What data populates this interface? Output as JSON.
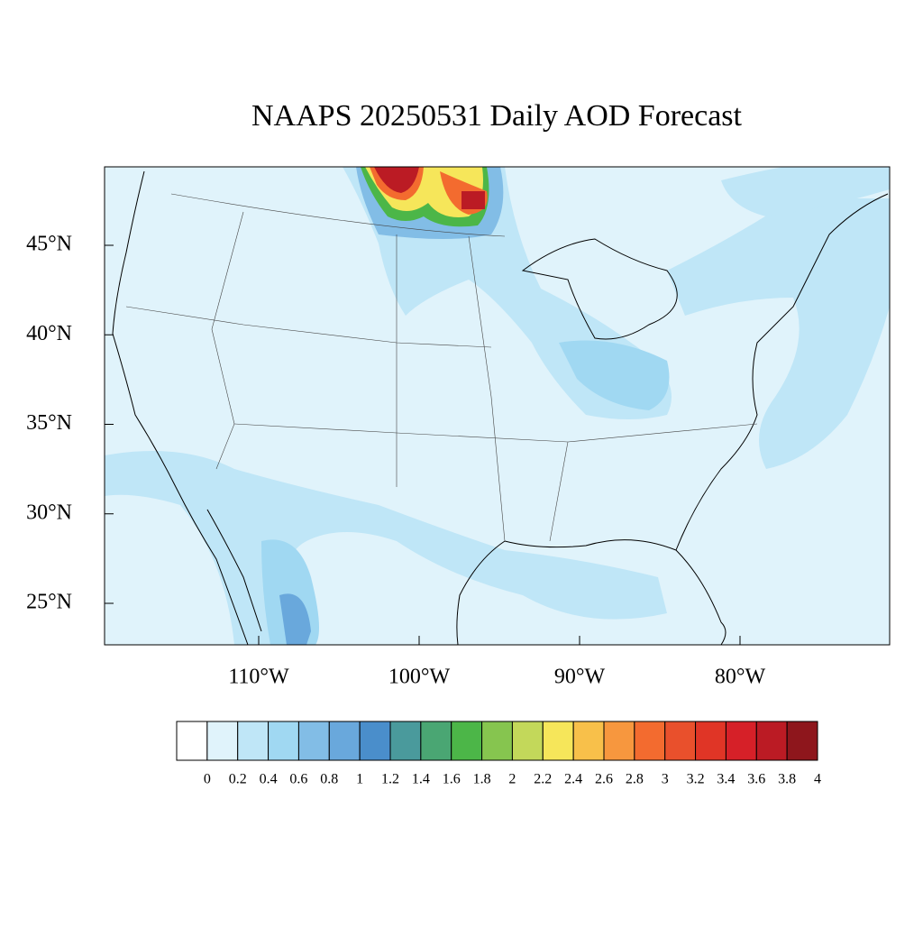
{
  "title": "NAAPS 20250531 Daily AOD Forecast",
  "map": {
    "lat_ticks": [
      {
        "value": 45,
        "label": "45°N"
      },
      {
        "value": 40,
        "label": "40°N"
      },
      {
        "value": 35,
        "label": "35°N"
      },
      {
        "value": 30,
        "label": "30°N"
      },
      {
        "value": 25,
        "label": "25°N"
      }
    ],
    "lon_ticks": [
      {
        "value": -110,
        "label": "110°W"
      },
      {
        "value": -100,
        "label": "100°W"
      },
      {
        "value": -90,
        "label": "90°W"
      },
      {
        "value": -80,
        "label": "80°W"
      }
    ]
  },
  "colorbar": {
    "levels": [
      0,
      0.2,
      0.4,
      0.6,
      0.8,
      1,
      1.2,
      1.4,
      1.6,
      1.8,
      2,
      2.2,
      2.4,
      2.6,
      2.8,
      3,
      3.2,
      3.4,
      3.6,
      3.8,
      4
    ],
    "colors": [
      "#ffffff",
      "#e0f3fb",
      "#bfe6f7",
      "#a0d8f2",
      "#82bde6",
      "#69a8dc",
      "#4a8ecb",
      "#4a9a9c",
      "#4aa673",
      "#4cb648",
      "#86c54f",
      "#c3d85a",
      "#f6e65a",
      "#f8c04a",
      "#f7973e",
      "#f36b2f",
      "#e9502c",
      "#e03526",
      "#d62028",
      "#bb1b24",
      "#8e161c"
    ]
  }
}
